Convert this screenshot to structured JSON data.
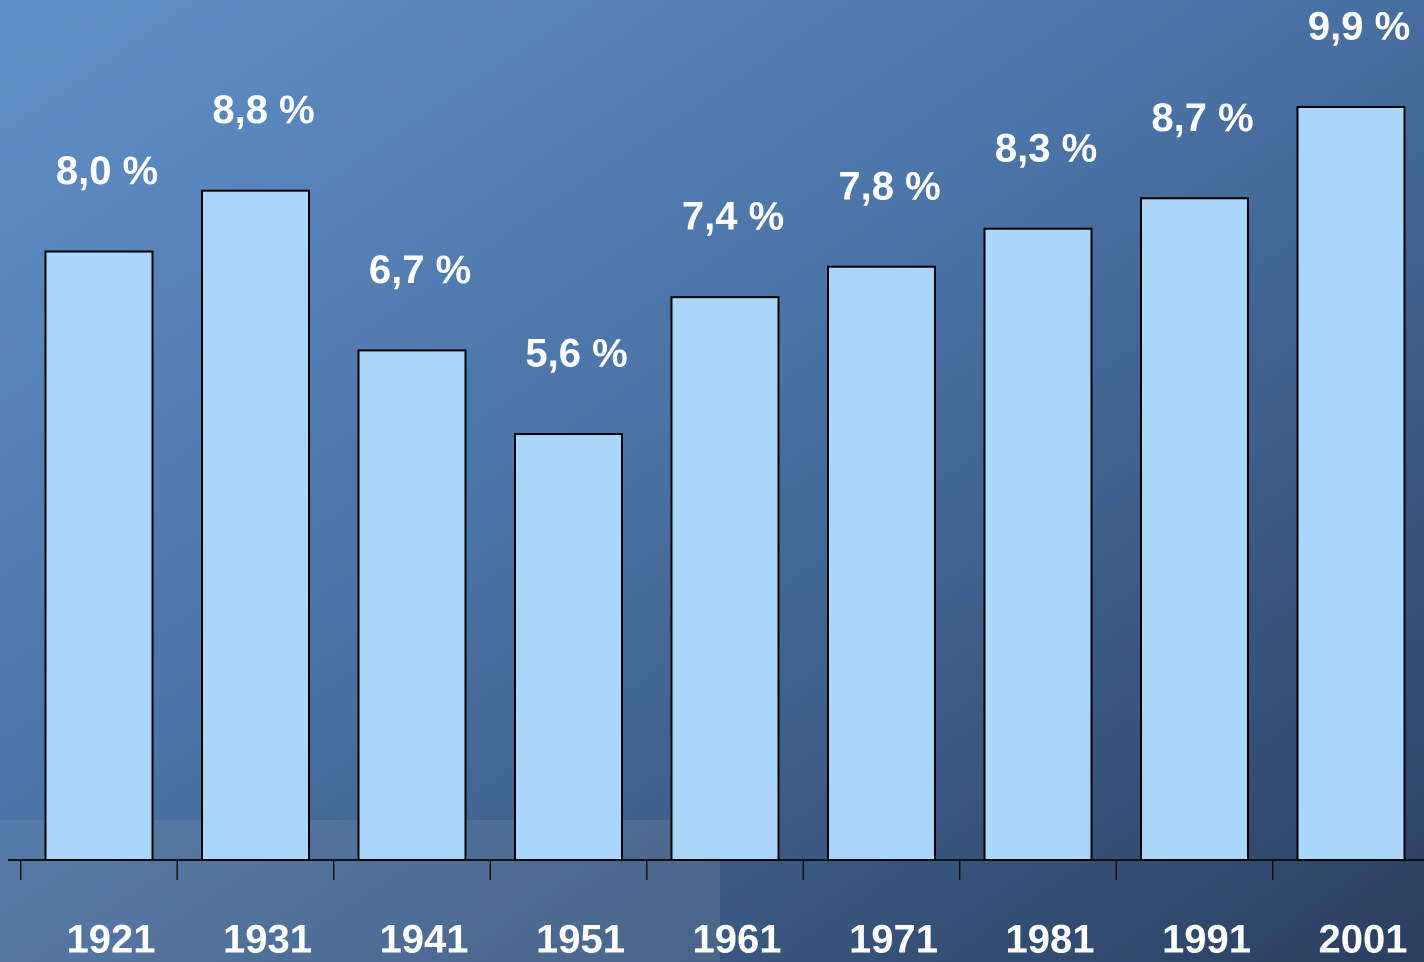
{
  "chart_data": {
    "type": "bar",
    "categories": [
      "1921",
      "1931",
      "1941",
      "1951",
      "1961",
      "1971",
      "1981",
      "1991",
      "2001"
    ],
    "values": [
      8.0,
      8.8,
      6.7,
      5.6,
      7.4,
      7.8,
      8.3,
      8.7,
      9.9
    ],
    "value_labels": [
      "8,0 %",
      "8,8 %",
      "6,7 %",
      "5,6 %",
      "7,4 %",
      "7,8 %",
      "8,3 %",
      "8,7 %",
      "9,9 %"
    ],
    "color": "#aad6fb"
  }
}
